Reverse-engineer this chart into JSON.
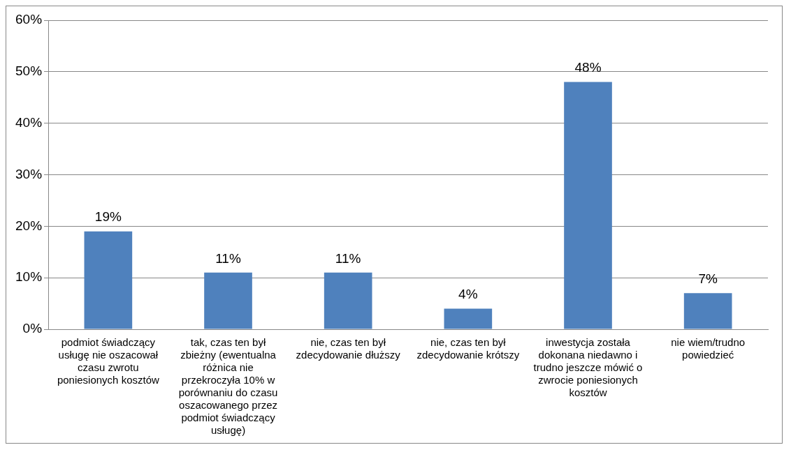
{
  "chart_data": {
    "type": "bar",
    "categories": [
      "podmiot świadczący usługę nie oszacował czasu zwrotu poniesionych kosztów",
      "tak, czas ten był zbieżny (ewentualna różnica nie przekroczyła 10% w porównaniu do czasu oszacowanego przez podmiot świadczący usługę)",
      "nie, czas ten był zdecydowanie dłuższy",
      "nie, czas ten był zdecydowanie krótszy",
      "inwestycja została dokonana niedawno i trudno jeszcze mówić o zwrocie poniesionych kosztów",
      "nie wiem/trudno powiedzieć"
    ],
    "values": [
      19,
      11,
      11,
      4,
      48,
      7
    ],
    "value_labels": [
      "19%",
      "11%",
      "11%",
      "4%",
      "48%",
      "7%"
    ],
    "color": "#4f81bd",
    "ylim": [
      0,
      60
    ],
    "yticks": [
      {
        "value": 0,
        "label": "0%"
      },
      {
        "value": 10,
        "label": "10%"
      },
      {
        "value": 20,
        "label": "20%"
      },
      {
        "value": 30,
        "label": "30%"
      },
      {
        "value": 40,
        "label": "40%"
      },
      {
        "value": 50,
        "label": "50%"
      },
      {
        "value": 60,
        "label": "60%"
      }
    ],
    "grid": "y",
    "legend": false
  }
}
